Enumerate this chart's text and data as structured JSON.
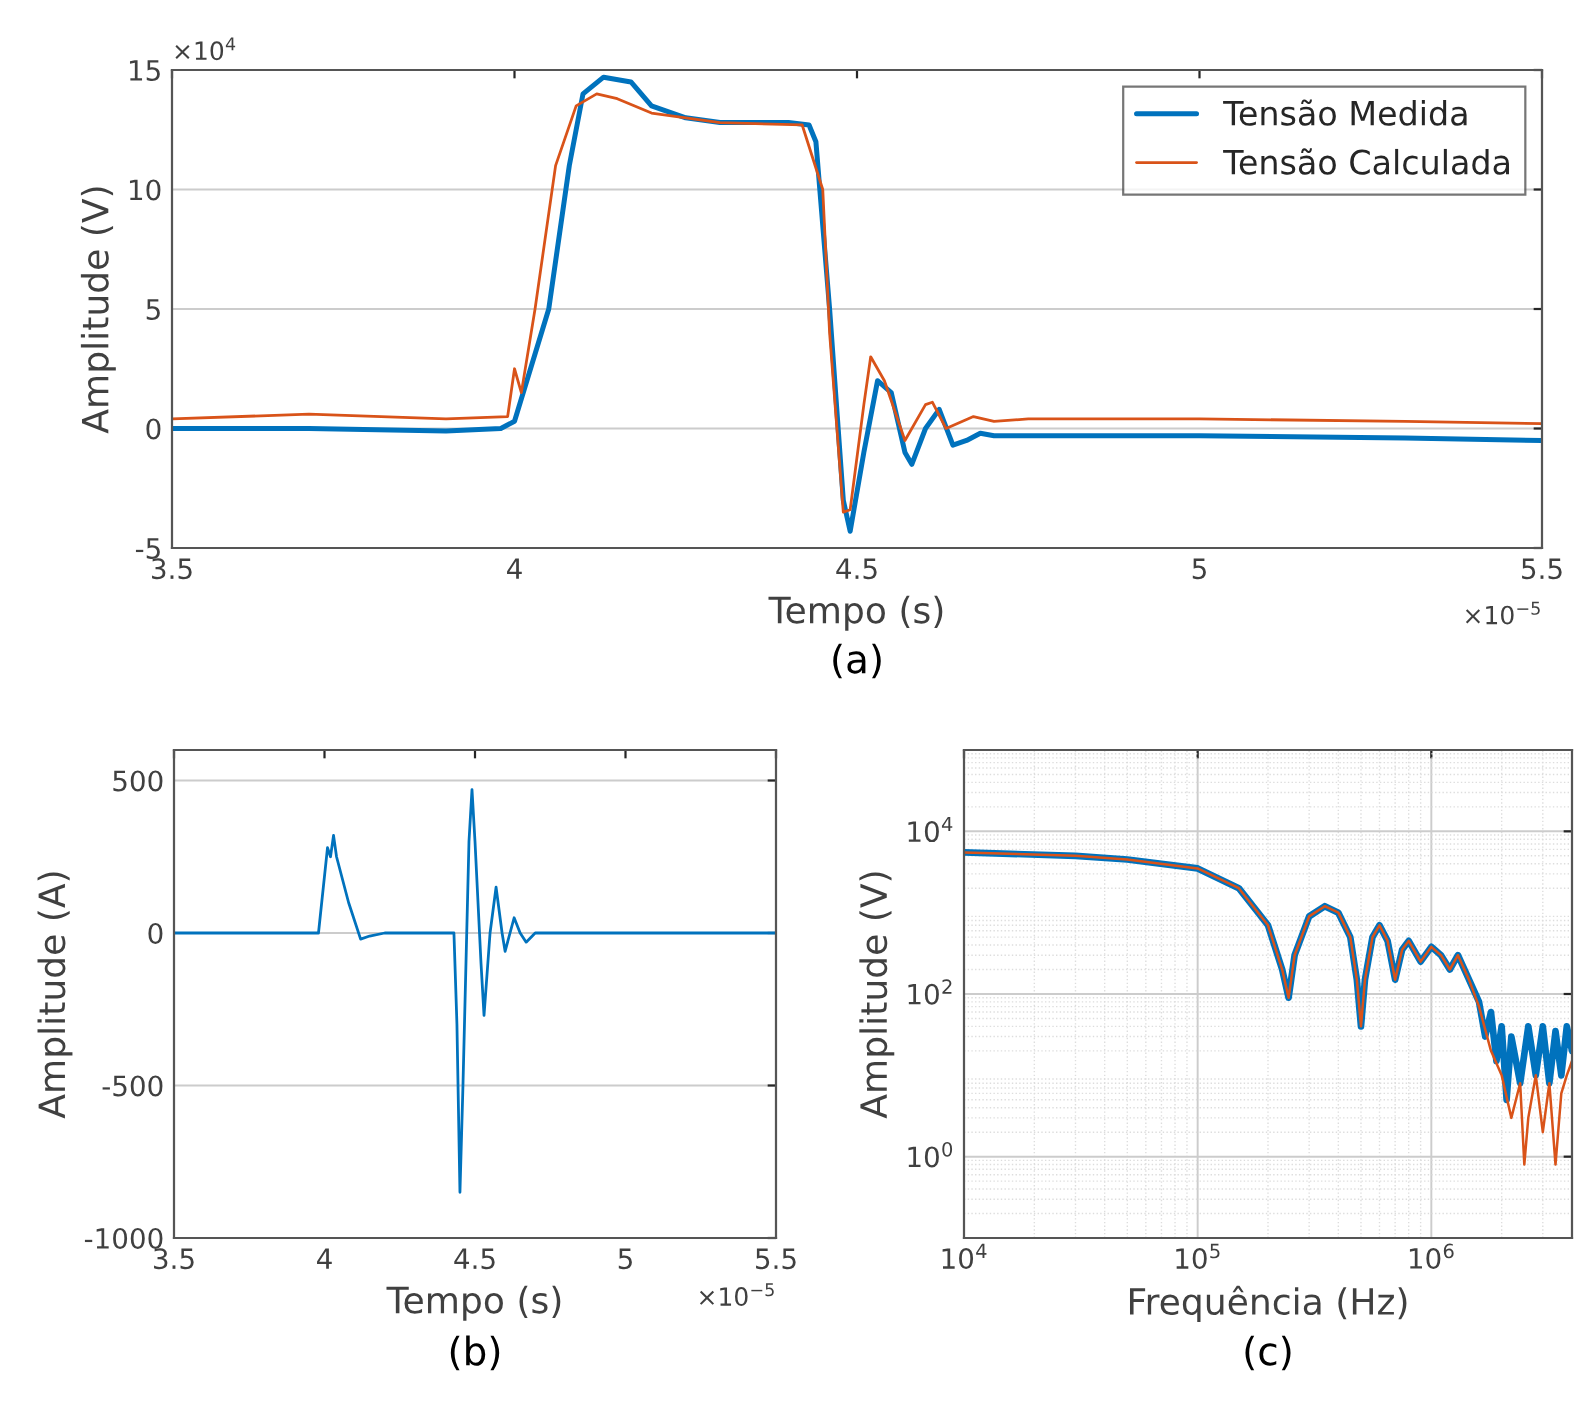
{
  "chart_data": [
    {
      "type": "line",
      "xlabel": "Tempo (s)",
      "ylabel": "Amplitude (V)",
      "xlim": [
        3.5,
        5.5
      ],
      "xticks": [
        3.5,
        4,
        4.5,
        5,
        5.5
      ],
      "ylim": [
        -5,
        15
      ],
      "yticks": [
        -5,
        0,
        5,
        10,
        15
      ],
      "grid": "y",
      "legend": "top right",
      "annotations": [
        "×10$^{4}$",
        "×10$^{−5}$",
        "(a)"
      ],
      "series": [
        {
          "name": "Tensão Medida",
          "color": "#0072bd",
          "x": [
            3.5,
            3.7,
            3.9,
            3.98,
            4.0,
            4.05,
            4.08,
            4.1,
            4.13,
            4.17,
            4.2,
            4.25,
            4.3,
            4.4,
            4.43,
            4.44,
            4.46,
            4.48,
            4.49,
            4.51,
            4.53,
            4.55,
            4.57,
            4.58,
            4.6,
            4.62,
            4.64,
            4.66,
            4.68,
            4.7,
            5.0,
            5.3,
            5.5
          ],
          "values": [
            0,
            0,
            -0.1,
            0,
            0.3,
            5,
            11,
            14,
            14.7,
            14.5,
            13.5,
            13,
            12.8,
            12.8,
            12.7,
            12,
            5,
            -3,
            -4.3,
            -1,
            2,
            1.5,
            -1,
            -1.5,
            0,
            0.8,
            -0.7,
            -0.5,
            -0.2,
            -0.3,
            -0.3,
            -0.4,
            -0.5
          ]
        },
        {
          "name": "Tensão Calculada",
          "color": "#d95319",
          "x": [
            3.5,
            3.7,
            3.9,
            3.99,
            4.0,
            4.01,
            4.03,
            4.06,
            4.09,
            4.12,
            4.15,
            4.2,
            4.3,
            4.42,
            4.45,
            4.46,
            4.48,
            4.49,
            4.51,
            4.52,
            4.54,
            4.57,
            4.6,
            4.61,
            4.63,
            4.67,
            4.7,
            4.75,
            5.0,
            5.3,
            5.5
          ],
          "values": [
            0.4,
            0.6,
            0.4,
            0.5,
            2.5,
            1.5,
            5,
            11,
            13.5,
            14,
            13.8,
            13.2,
            12.8,
            12.7,
            10,
            4,
            -3.5,
            -3.4,
            1,
            3,
            2,
            -0.5,
            1,
            1.1,
            0,
            0.5,
            0.3,
            0.4,
            0.4,
            0.3,
            0.2
          ]
        }
      ]
    },
    {
      "type": "line",
      "xlabel": "Tempo (s)",
      "ylabel": "Amplitude (A)",
      "xlim": [
        3.5,
        5.5
      ],
      "xticks": [
        3.5,
        4,
        4.5,
        5,
        5.5
      ],
      "ylim": [
        -1000,
        600
      ],
      "yticks": [
        -1000,
        -500,
        0,
        500
      ],
      "grid": "y",
      "annotations": [
        "×10$^{−5}$",
        "(b)"
      ],
      "series": [
        {
          "color": "#0072bd",
          "x": [
            3.5,
            3.98,
            4.01,
            4.02,
            4.03,
            4.04,
            4.08,
            4.12,
            4.15,
            4.2,
            4.43,
            4.44,
            4.45,
            4.46,
            4.48,
            4.49,
            4.5,
            4.52,
            4.53,
            4.55,
            4.57,
            4.59,
            4.6,
            4.63,
            4.65,
            4.67,
            4.7,
            5.5
          ],
          "values": [
            0,
            0,
            280,
            250,
            320,
            250,
            100,
            -20,
            -10,
            0,
            0,
            -300,
            -850,
            -500,
            300,
            470,
            300,
            -100,
            -270,
            0,
            150,
            0,
            -60,
            50,
            0,
            -30,
            0,
            0
          ]
        }
      ]
    },
    {
      "type": "line",
      "xlabel": "Frequência (Hz)",
      "ylabel": "Amplitude (V)",
      "log": "xy",
      "xlim": [
        10000,
        4000000
      ],
      "xticks": [
        {
          "value": 10000,
          "label": "10$^{4}$"
        },
        {
          "value": 100000,
          "label": "10$^{5}$"
        },
        {
          "value": 1000000,
          "label": "10$^{6}$"
        }
      ],
      "ylim": [
        0.1,
        100000
      ],
      "yticks": [
        {
          "value": 1,
          "label": "10$^{0}$"
        },
        {
          "value": 100,
          "label": "10$^{2}$"
        },
        {
          "value": 10000,
          "label": "10$^{4}$"
        }
      ],
      "grid": true,
      "annotations": [
        "(c)"
      ],
      "series": [
        {
          "color": "#0072bd",
          "x": [
            10000,
            30000,
            50000,
            100000,
            150000,
            200000,
            230000,
            245000,
            260000,
            300000,
            350000,
            400000,
            450000,
            480000,
            500000,
            520000,
            560000,
            600000,
            650000,
            700000,
            750000,
            800000,
            900000,
            1000000,
            1100000,
            1200000,
            1300000,
            1450000,
            1600000,
            1700000,
            1800000,
            1900000,
            2000000,
            2100000,
            2200000,
            2400000,
            2600000,
            2800000,
            3000000,
            3200000,
            3400000,
            3600000,
            3800000,
            4000000
          ],
          "values": [
            5500,
            5000,
            4500,
            3500,
            2000,
            700,
            200,
            90,
            300,
            900,
            1200,
            1000,
            500,
            150,
            40,
            150,
            500,
            700,
            450,
            150,
            350,
            450,
            250,
            380,
            300,
            200,
            300,
            150,
            80,
            30,
            60,
            15,
            40,
            5,
            30,
            8,
            40,
            10,
            40,
            8,
            35,
            10,
            40,
            20
          ]
        },
        {
          "color": "#d95319",
          "x": [
            10000,
            30000,
            50000,
            100000,
            150000,
            200000,
            230000,
            245000,
            260000,
            300000,
            350000,
            400000,
            450000,
            480000,
            500000,
            520000,
            560000,
            600000,
            650000,
            700000,
            750000,
            800000,
            900000,
            1000000,
            1100000,
            1200000,
            1300000,
            1450000,
            1600000,
            1800000,
            2000000,
            2200000,
            2400000,
            2500000,
            2600000,
            2800000,
            3000000,
            3200000,
            3400000,
            3600000,
            3800000,
            4000000
          ],
          "values": [
            5500,
            5000,
            4500,
            3500,
            2000,
            700,
            200,
            90,
            300,
            900,
            1200,
            1000,
            500,
            150,
            40,
            150,
            500,
            700,
            450,
            150,
            350,
            450,
            250,
            380,
            300,
            200,
            300,
            150,
            70,
            20,
            10,
            3,
            8,
            0.8,
            3,
            10,
            2,
            8,
            0.8,
            6,
            10,
            15
          ]
        }
      ]
    }
  ]
}
